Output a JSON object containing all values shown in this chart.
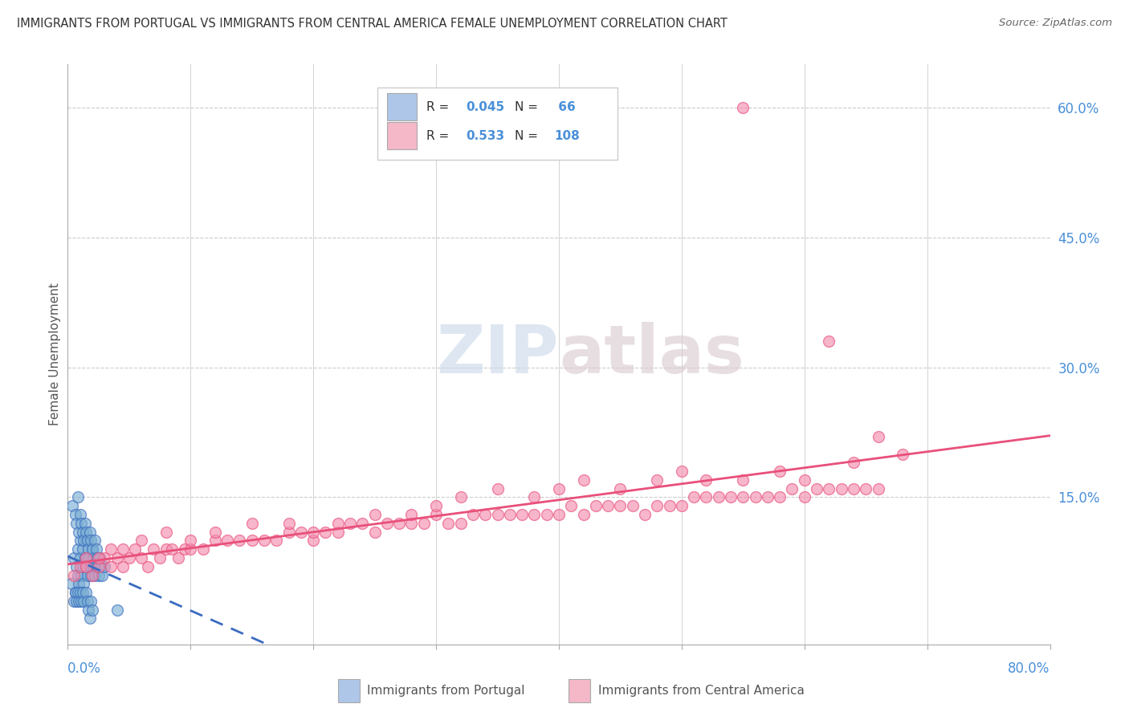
{
  "title": "IMMIGRANTS FROM PORTUGAL VS IMMIGRANTS FROM CENTRAL AMERICA FEMALE UNEMPLOYMENT CORRELATION CHART",
  "source": "Source: ZipAtlas.com",
  "ylabel": "Female Unemployment",
  "right_yticks": [
    "60.0%",
    "45.0%",
    "30.0%",
    "15.0%"
  ],
  "right_ytick_vals": [
    0.6,
    0.45,
    0.3,
    0.15
  ],
  "xlim": [
    0.0,
    0.8
  ],
  "ylim": [
    -0.02,
    0.65
  ],
  "legend_color1": "#aec6e8",
  "legend_color2": "#f4b8c8",
  "scatter_color1": "#7bafd4",
  "scatter_color2": "#f48fb1",
  "line_color1": "#3a6bbf",
  "line_color2": "#e8507a",
  "watermark_color": "#d0dce8",
  "background_color": "#ffffff",
  "grid_color": "#cccccc",
  "title_color": "#333333",
  "right_axis_color": "#4a90d9",
  "portugal_x": [
    0.003,
    0.005,
    0.006,
    0.007,
    0.008,
    0.008,
    0.009,
    0.01,
    0.01,
    0.011,
    0.012,
    0.012,
    0.013,
    0.014,
    0.015,
    0.015,
    0.016,
    0.017,
    0.018,
    0.019,
    0.02,
    0.021,
    0.022,
    0.023,
    0.024,
    0.025,
    0.026,
    0.027,
    0.028,
    0.03,
    0.004,
    0.006,
    0.007,
    0.008,
    0.009,
    0.01,
    0.011,
    0.012,
    0.013,
    0.014,
    0.015,
    0.016,
    0.017,
    0.018,
    0.019,
    0.02,
    0.021,
    0.022,
    0.023,
    0.024,
    0.005,
    0.006,
    0.007,
    0.008,
    0.009,
    0.01,
    0.011,
    0.012,
    0.013,
    0.015,
    0.016,
    0.017,
    0.018,
    0.019,
    0.02,
    0.04
  ],
  "portugal_y": [
    0.05,
    0.08,
    0.04,
    0.07,
    0.06,
    0.09,
    0.05,
    0.08,
    0.1,
    0.06,
    0.07,
    0.09,
    0.05,
    0.08,
    0.07,
    0.1,
    0.06,
    0.08,
    0.07,
    0.06,
    0.09,
    0.07,
    0.06,
    0.08,
    0.07,
    0.06,
    0.08,
    0.07,
    0.06,
    0.07,
    0.14,
    0.13,
    0.12,
    0.15,
    0.11,
    0.13,
    0.12,
    0.11,
    0.1,
    0.12,
    0.11,
    0.1,
    0.09,
    0.11,
    0.1,
    0.09,
    0.08,
    0.1,
    0.09,
    0.08,
    0.03,
    0.04,
    0.03,
    0.04,
    0.03,
    0.04,
    0.03,
    0.04,
    0.03,
    0.04,
    0.03,
    0.02,
    0.01,
    0.03,
    0.02,
    0.02
  ],
  "central_x": [
    0.005,
    0.01,
    0.015,
    0.02,
    0.025,
    0.03,
    0.035,
    0.04,
    0.045,
    0.05,
    0.055,
    0.06,
    0.065,
    0.07,
    0.075,
    0.08,
    0.085,
    0.09,
    0.095,
    0.1,
    0.11,
    0.12,
    0.13,
    0.14,
    0.15,
    0.16,
    0.17,
    0.18,
    0.19,
    0.2,
    0.21,
    0.22,
    0.23,
    0.24,
    0.25,
    0.26,
    0.27,
    0.28,
    0.29,
    0.3,
    0.31,
    0.32,
    0.33,
    0.34,
    0.35,
    0.36,
    0.37,
    0.38,
    0.39,
    0.4,
    0.41,
    0.42,
    0.43,
    0.44,
    0.45,
    0.46,
    0.47,
    0.48,
    0.49,
    0.5,
    0.51,
    0.52,
    0.53,
    0.54,
    0.55,
    0.56,
    0.57,
    0.58,
    0.59,
    0.6,
    0.61,
    0.62,
    0.63,
    0.64,
    0.65,
    0.66,
    0.015,
    0.025,
    0.035,
    0.045,
    0.06,
    0.08,
    0.1,
    0.12,
    0.15,
    0.18,
    0.2,
    0.22,
    0.25,
    0.28,
    0.3,
    0.32,
    0.35,
    0.38,
    0.4,
    0.42,
    0.45,
    0.48,
    0.5,
    0.52,
    0.55,
    0.58,
    0.6,
    0.64,
    0.62,
    0.66,
    0.68,
    0.55
  ],
  "central_y": [
    0.06,
    0.07,
    0.08,
    0.06,
    0.07,
    0.08,
    0.07,
    0.08,
    0.07,
    0.08,
    0.09,
    0.08,
    0.07,
    0.09,
    0.08,
    0.09,
    0.09,
    0.08,
    0.09,
    0.09,
    0.09,
    0.1,
    0.1,
    0.1,
    0.1,
    0.1,
    0.1,
    0.11,
    0.11,
    0.1,
    0.11,
    0.11,
    0.12,
    0.12,
    0.11,
    0.12,
    0.12,
    0.12,
    0.12,
    0.13,
    0.12,
    0.12,
    0.13,
    0.13,
    0.13,
    0.13,
    0.13,
    0.13,
    0.13,
    0.13,
    0.14,
    0.13,
    0.14,
    0.14,
    0.14,
    0.14,
    0.13,
    0.14,
    0.14,
    0.14,
    0.15,
    0.15,
    0.15,
    0.15,
    0.15,
    0.15,
    0.15,
    0.15,
    0.16,
    0.15,
    0.16,
    0.16,
    0.16,
    0.16,
    0.16,
    0.16,
    0.07,
    0.08,
    0.09,
    0.09,
    0.1,
    0.11,
    0.1,
    0.11,
    0.12,
    0.12,
    0.11,
    0.12,
    0.13,
    0.13,
    0.14,
    0.15,
    0.16,
    0.15,
    0.16,
    0.17,
    0.16,
    0.17,
    0.18,
    0.17,
    0.17,
    0.18,
    0.17,
    0.19,
    0.33,
    0.22,
    0.2,
    0.6
  ]
}
